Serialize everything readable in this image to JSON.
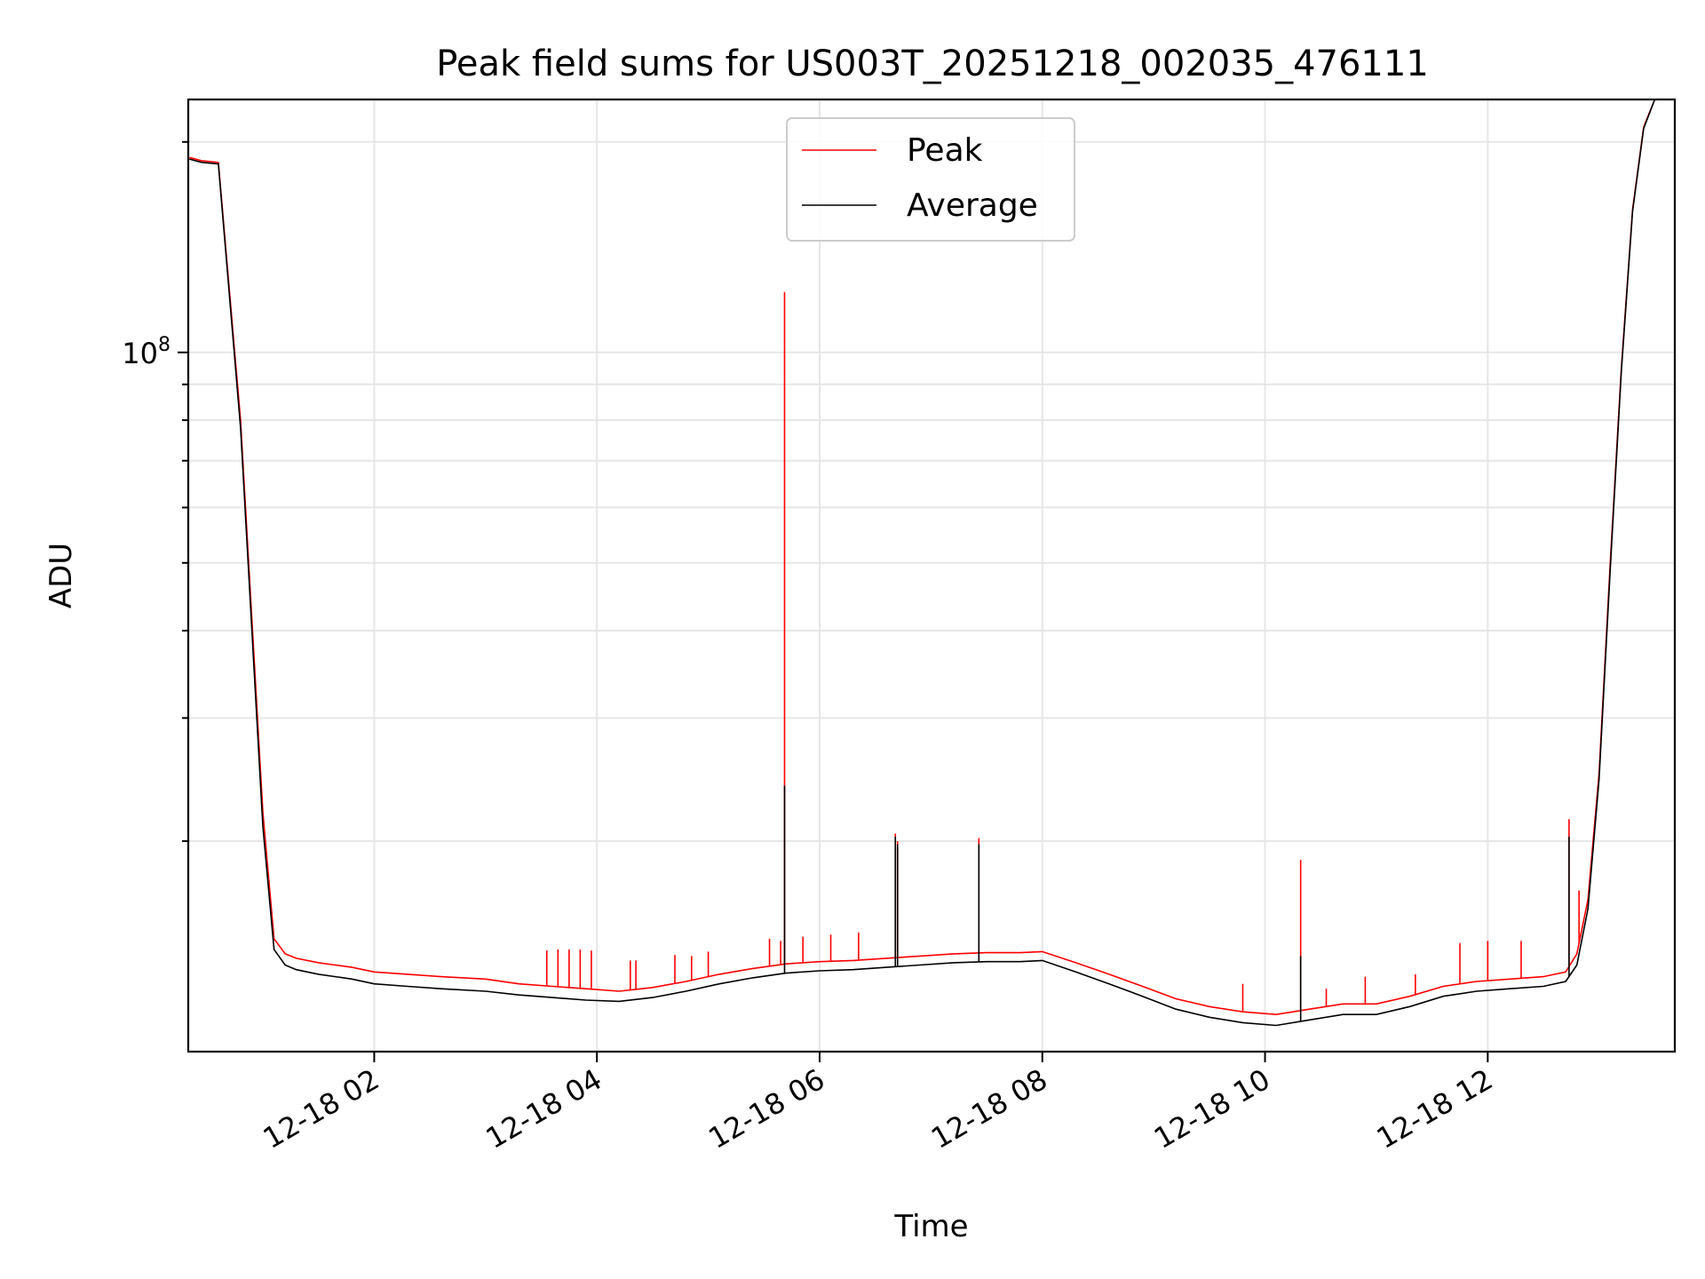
{
  "chart_data": {
    "type": "line",
    "title": "Peak field sums for US003T_20251218_002035_476111",
    "xlabel": "Time",
    "ylabel": "ADU",
    "yscale": "log",
    "ylim": [
      10000000,
      230000000
    ],
    "xlim_hours": [
      0.33,
      13.68
    ],
    "x_unit": "hours since 12-18 00:00",
    "grid": true,
    "legend_position": "upper-center",
    "x_ticks": [
      {
        "value": 2,
        "label": "12-18 02"
      },
      {
        "value": 4,
        "label": "12-18 04"
      },
      {
        "value": 6,
        "label": "12-18 06"
      },
      {
        "value": 8,
        "label": "12-18 08"
      },
      {
        "value": 10,
        "label": "12-18 10"
      },
      {
        "value": 12,
        "label": "12-18 12"
      }
    ],
    "y_ticks": [
      {
        "value": 100000000,
        "base": "10",
        "exponent": "8"
      }
    ],
    "series": [
      {
        "name": "Peak",
        "color": "#ff0000",
        "x": [
          0.34,
          0.45,
          0.6,
          0.8,
          1.0,
          1.1,
          1.2,
          1.3,
          1.5,
          1.8,
          2.0,
          2.3,
          2.6,
          3.0,
          3.3,
          3.6,
          3.9,
          4.2,
          4.5,
          4.8,
          5.1,
          5.4,
          5.7,
          6.0,
          6.3,
          6.6,
          6.9,
          7.2,
          7.5,
          7.8,
          8.0,
          8.3,
          8.6,
          8.9,
          9.2,
          9.5,
          9.8,
          10.1,
          10.4,
          10.7,
          11.0,
          11.3,
          11.6,
          11.9,
          12.2,
          12.5,
          12.7,
          12.8,
          12.9,
          13.0,
          13.1,
          13.2,
          13.3,
          13.4,
          13.5,
          13.56,
          13.68
        ],
        "values": [
          190000000,
          188000000,
          187000000,
          80000000,
          22000000,
          14500000,
          13800000,
          13600000,
          13400000,
          13200000,
          13000000,
          12900000,
          12800000,
          12700000,
          12500000,
          12400000,
          12300000,
          12200000,
          12350000,
          12600000,
          12900000,
          13150000,
          13350000,
          13450000,
          13500000,
          13600000,
          13700000,
          13800000,
          13850000,
          13850000,
          13900000,
          13400000,
          12900000,
          12400000,
          11900000,
          11600000,
          11400000,
          11300000,
          11500000,
          11700000,
          11700000,
          12000000,
          12400000,
          12600000,
          12700000,
          12800000,
          13000000,
          13800000,
          16500000,
          25000000,
          50000000,
          95000000,
          160000000,
          210000000,
          230000000,
          230000000,
          230000000
        ],
        "spikes": [
          {
            "x": 3.55,
            "value": 13950000
          },
          {
            "x": 3.65,
            "value": 14000000
          },
          {
            "x": 3.75,
            "value": 14000000
          },
          {
            "x": 3.85,
            "value": 14000000
          },
          {
            "x": 3.95,
            "value": 13950000
          },
          {
            "x": 4.3,
            "value": 13500000
          },
          {
            "x": 4.35,
            "value": 13500000
          },
          {
            "x": 4.7,
            "value": 13750000
          },
          {
            "x": 4.85,
            "value": 13700000
          },
          {
            "x": 5.0,
            "value": 13900000
          },
          {
            "x": 5.55,
            "value": 14500000
          },
          {
            "x": 5.65,
            "value": 14400000
          },
          {
            "x": 5.685,
            "value": 122000000
          },
          {
            "x": 5.85,
            "value": 14600000
          },
          {
            "x": 6.1,
            "value": 14700000
          },
          {
            "x": 6.35,
            "value": 14800000
          },
          {
            "x": 6.68,
            "value": 20500000
          },
          {
            "x": 6.7,
            "value": 20000000
          },
          {
            "x": 7.43,
            "value": 20200000
          },
          {
            "x": 9.8,
            "value": 12500000
          },
          {
            "x": 10.32,
            "value": 18800000
          },
          {
            "x": 10.55,
            "value": 12300000
          },
          {
            "x": 10.9,
            "value": 12800000
          },
          {
            "x": 11.35,
            "value": 12900000
          },
          {
            "x": 11.75,
            "value": 14300000
          },
          {
            "x": 12.0,
            "value": 14400000
          },
          {
            "x": 12.3,
            "value": 14400000
          },
          {
            "x": 12.73,
            "value": 21500000
          },
          {
            "x": 12.82,
            "value": 17000000
          }
        ]
      },
      {
        "name": "Average",
        "color": "#000000",
        "x": [
          0.34,
          0.45,
          0.6,
          0.8,
          1.0,
          1.1,
          1.2,
          1.3,
          1.5,
          1.8,
          2.0,
          2.3,
          2.6,
          3.0,
          3.3,
          3.6,
          3.9,
          4.2,
          4.5,
          4.8,
          5.1,
          5.4,
          5.7,
          6.0,
          6.3,
          6.6,
          6.9,
          7.2,
          7.5,
          7.8,
          8.0,
          8.3,
          8.6,
          8.9,
          9.2,
          9.5,
          9.8,
          10.1,
          10.4,
          10.7,
          11.0,
          11.3,
          11.6,
          11.9,
          12.2,
          12.5,
          12.7,
          12.8,
          12.9,
          13.0,
          13.1,
          13.2,
          13.3,
          13.4,
          13.5,
          13.56,
          13.68
        ],
        "values": [
          189000000,
          187000000,
          186000000,
          78000000,
          21000000,
          14000000,
          13300000,
          13100000,
          12900000,
          12700000,
          12500000,
          12400000,
          12300000,
          12200000,
          12050000,
          11950000,
          11850000,
          11800000,
          11950000,
          12200000,
          12500000,
          12750000,
          12950000,
          13050000,
          13100000,
          13200000,
          13300000,
          13400000,
          13450000,
          13450000,
          13500000,
          13000000,
          12500000,
          12000000,
          11500000,
          11200000,
          11000000,
          10900000,
          11100000,
          11300000,
          11300000,
          11600000,
          12000000,
          12200000,
          12300000,
          12400000,
          12600000,
          13300000,
          16000000,
          24500000,
          49000000,
          94000000,
          159000000,
          209000000,
          230000000,
          230000000,
          230000000
        ],
        "spikes": [
          {
            "x": 5.685,
            "value": 24000000
          },
          {
            "x": 6.68,
            "value": 20300000
          },
          {
            "x": 6.7,
            "value": 19800000
          },
          {
            "x": 7.43,
            "value": 19800000
          },
          {
            "x": 10.32,
            "value": 13700000
          },
          {
            "x": 12.73,
            "value": 20300000
          }
        ]
      }
    ]
  }
}
